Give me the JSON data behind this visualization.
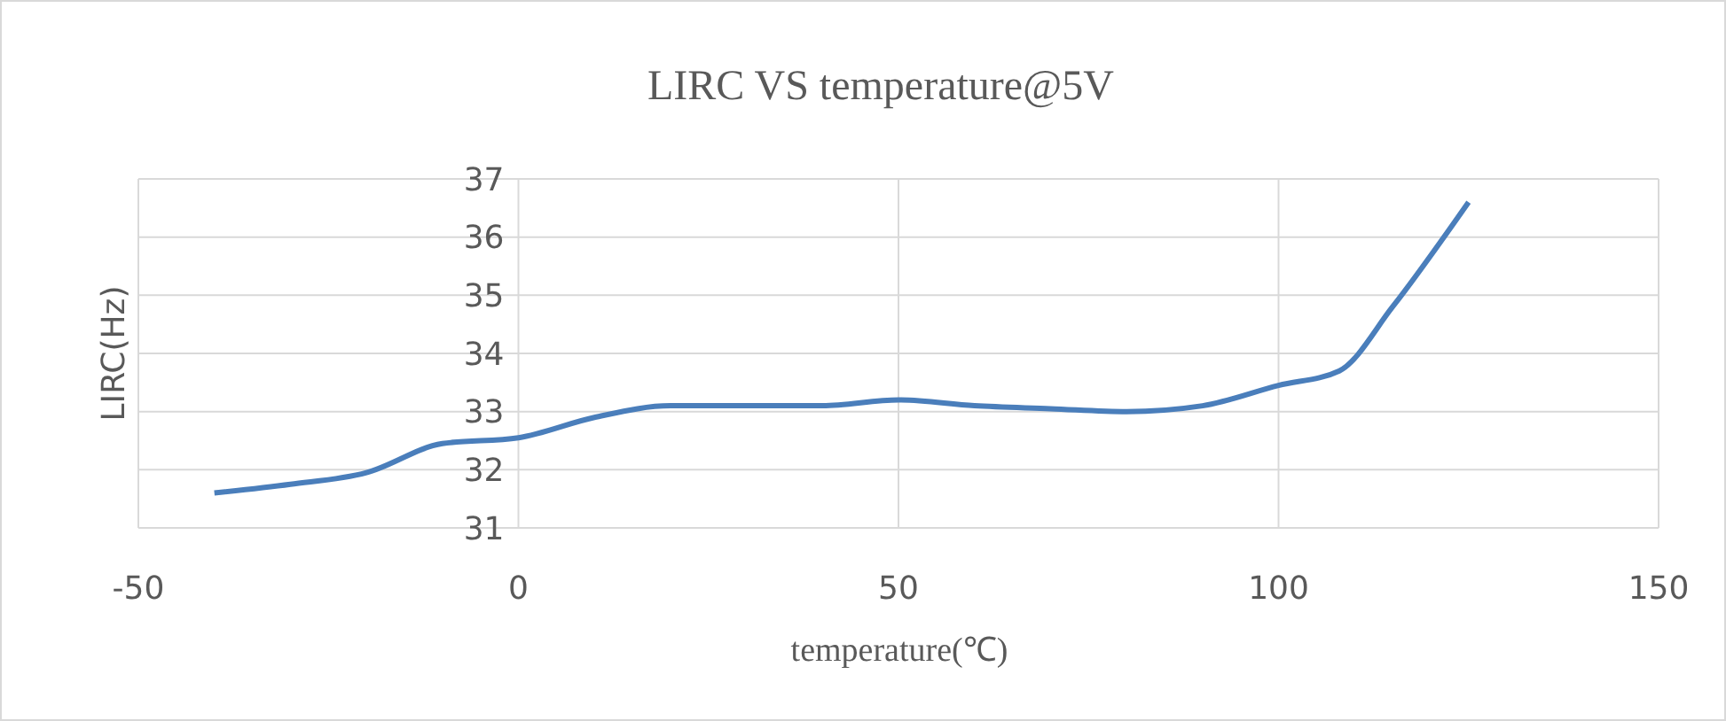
{
  "chart_data": {
    "type": "line",
    "title": "LIRC VS temperature@5V",
    "xlabel": "temperature(℃)",
    "ylabel": "LIRC(Hz)",
    "series": [
      {
        "color": "#4a7ebb",
        "x": [
          -40,
          -30,
          -20,
          -10,
          0,
          10,
          20,
          30,
          40,
          50,
          60,
          70,
          80,
          90,
          100,
          108,
          115,
          125
        ],
        "values": [
          31.6,
          31.75,
          31.95,
          32.45,
          32.55,
          32.9,
          33.1,
          33.1,
          33.1,
          33.2,
          33.1,
          33.05,
          33,
          33.1,
          33.45,
          33.7,
          34.8,
          36.6
        ]
      }
    ],
    "xlim": [
      -50,
      150
    ],
    "xticks": [
      -50,
      0,
      50,
      100,
      150
    ],
    "ylim": [
      31,
      37
    ],
    "yticks": [
      31,
      32,
      33,
      34,
      35,
      36,
      37
    ],
    "grid": true,
    "marker": "none",
    "line_style": "solid"
  }
}
